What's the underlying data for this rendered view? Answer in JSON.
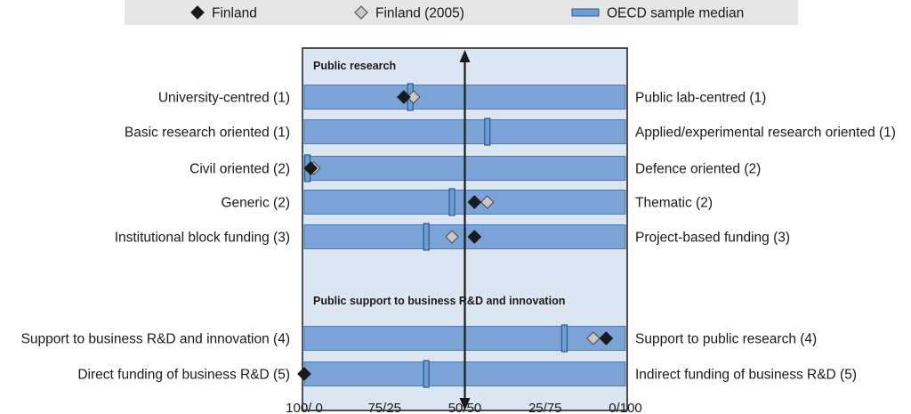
{
  "legend": {
    "items": [
      {
        "label": "Finland",
        "marker": "diamond-filled",
        "color": "#1a1a1a"
      },
      {
        "label": "Finland (2005)",
        "marker": "diamond-open",
        "color": "#c8c8c8"
      },
      {
        "label": "OECD sample median",
        "marker": "bar",
        "color": "#6d9ed6"
      }
    ]
  },
  "chart_data": {
    "type": "bar",
    "orientation": "horizontal",
    "x_ticks": [
      "100/ 0",
      "75/25",
      "50/50",
      "25/75",
      "0/100"
    ],
    "xlim": [
      0,
      100
    ],
    "sections": [
      {
        "title": "Public research",
        "rows": [
          {
            "left": "University-centred (1)",
            "right": "Public lab-centred (1)",
            "finland": 31,
            "finland_2005": 34,
            "median": 33
          },
          {
            "left": "Basic research oriented (1)",
            "right": "Applied/experimental research oriented (1)",
            "finland": null,
            "finland_2005": null,
            "median": 57
          },
          {
            "left": "Civil oriented (2)",
            "right": "Defence oriented (2)",
            "finland": 2,
            "finland_2005": 3,
            "median": 1
          },
          {
            "left": "Generic (2)",
            "right": "Thematic (2)",
            "finland": 53,
            "finland_2005": 57,
            "median": 46
          },
          {
            "left": "Institutional block funding (3)",
            "right": "Project-based funding (3)",
            "finland": 53,
            "finland_2005": 46,
            "median": 38
          }
        ]
      },
      {
        "title": "Public support to business R&D and innovation",
        "rows": [
          {
            "left": "Support to business R&D and innovation (4)",
            "right": "Support to public research (4)",
            "finland": 94,
            "finland_2005": 90,
            "median": 81
          },
          {
            "left": "Direct funding of business R&D (5)",
            "right": "Indirect funding of business R&D (5)",
            "finland": 0,
            "finland_2005": null,
            "median": 38
          }
        ]
      }
    ]
  },
  "colors": {
    "legend_bg": "#e6e6e6",
    "panel_bg": "#dce6f2",
    "bar_fill": "#7ba3d8",
    "bar_stroke": "#4a7ab0",
    "median_fill": "#6d9ed6",
    "median_stroke": "#2e5a8a",
    "finland": "#1a1a1a",
    "finland_2005": "#c8c8c8"
  }
}
